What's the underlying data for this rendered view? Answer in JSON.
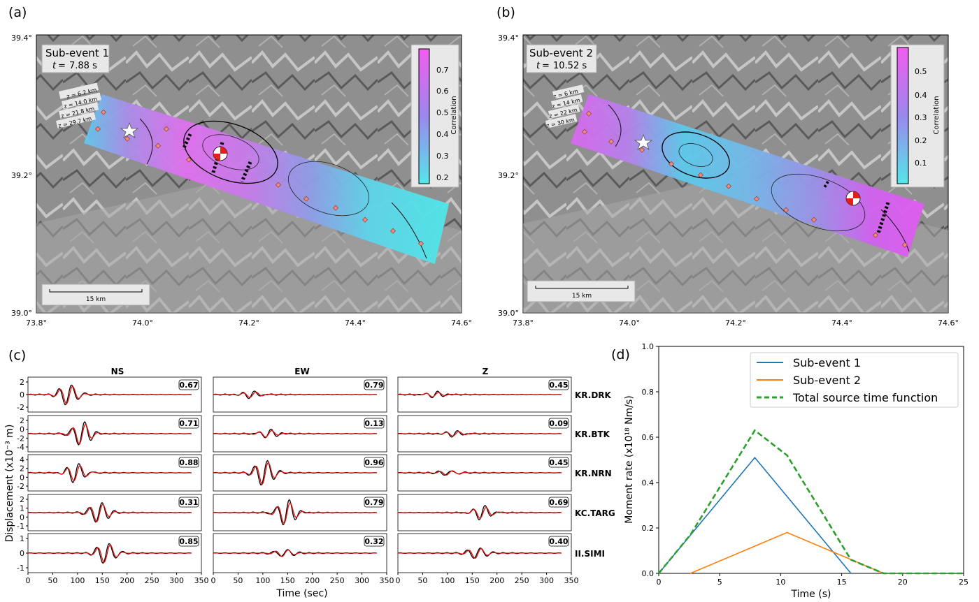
{
  "panels": {
    "a": {
      "label": "(a)",
      "title": "Sub-event 1",
      "time": "7.88 s",
      "lat_ticks": [
        "39.4°",
        "39.2°",
        "39.0°"
      ],
      "lon_ticks": [
        "73.8°",
        "74.0°",
        "74.2°",
        "74.4°",
        "74.6°"
      ],
      "depth_labels": [
        "z = 6.2 km",
        "z = 14.0 km",
        "z = 21.8 km",
        "z = 29.7 km"
      ],
      "scale_label": "15 km",
      "colorbar_label": "Correlation",
      "colorbar_ticks": [
        "0.7",
        "0.6",
        "0.5",
        "0.4",
        "0.3",
        "0.2"
      ]
    },
    "b": {
      "label": "(b)",
      "title": "Sub-event 2",
      "time": "10.52 s",
      "lat_ticks": [
        "39.4°",
        "39.2°",
        "39.0°"
      ],
      "lon_ticks": [
        "73.8°",
        "74.0°",
        "74.2°",
        "74.4°",
        "74.6°"
      ],
      "depth_labels": [
        "z = 6 km",
        "z = 14 km",
        "z = 22 km",
        "z = 30 km"
      ],
      "scale_label": "15 km",
      "colorbar_label": "Correlation",
      "colorbar_ticks": [
        "0.5",
        "0.4",
        "0.3",
        "0.2",
        "0.1"
      ]
    },
    "c": {
      "label": "(c)",
      "components": [
        "NS",
        "EW",
        "Z"
      ],
      "stations": [
        "KR.DRK",
        "KR.BTK",
        "KR.NRN",
        "KC.TARG",
        "II.SIMI"
      ],
      "correlations": [
        [
          "0.67",
          "0.79",
          "0.45"
        ],
        [
          "0.71",
          "0.13",
          "0.09"
        ],
        [
          "0.88",
          "0.96",
          "0.45"
        ],
        [
          "0.31",
          "0.79",
          "0.69"
        ],
        [
          "0.85",
          "0.32",
          "0.40"
        ]
      ],
      "row_yticks": [
        [
          "2",
          "0",
          "-2"
        ],
        [
          "2",
          "0",
          "-2",
          "-4"
        ],
        [
          "4",
          "2",
          "0",
          "-2"
        ],
        [
          "2",
          "1",
          "0",
          "-1"
        ],
        [
          "1",
          "0",
          "-1"
        ]
      ],
      "x_ticks": [
        "0",
        "50",
        "100",
        "150",
        "200",
        "250",
        "300",
        "350"
      ],
      "ylabel": "Displacement (x10⁻³ m)",
      "xlabel": "Time (sec)"
    }
  },
  "chart_data": {
    "type": "line",
    "label": "(d)",
    "xlabel": "Time (s)",
    "ylabel": "Moment rate (x10¹⁸ Nm/s)",
    "xlim": [
      0,
      25
    ],
    "ylim": [
      0,
      1.0
    ],
    "x_ticks": [
      "0",
      "5",
      "10",
      "15",
      "20",
      "25"
    ],
    "y_ticks": [
      "0.0",
      "0.2",
      "0.4",
      "0.6",
      "0.8",
      "1.0"
    ],
    "legend_position": "top-right",
    "series": [
      {
        "name": "Sub-event 1",
        "color": "#1f77b4",
        "dash": "solid",
        "x": [
          0,
          7.88,
          15.76
        ],
        "y": [
          0,
          0.51,
          0
        ]
      },
      {
        "name": "Sub-event 2",
        "color": "#ff7f0e",
        "dash": "solid",
        "x": [
          2.6,
          10.52,
          18.44
        ],
        "y": [
          0,
          0.18,
          0
        ]
      },
      {
        "name": "Total source time function",
        "color": "#2ca02c",
        "dash": "dashed",
        "x": [
          0,
          2.6,
          7.88,
          10.52,
          15.76,
          18.44,
          25
        ],
        "y": [
          0,
          0.17,
          0.63,
          0.52,
          0.06,
          0,
          0
        ]
      }
    ]
  }
}
